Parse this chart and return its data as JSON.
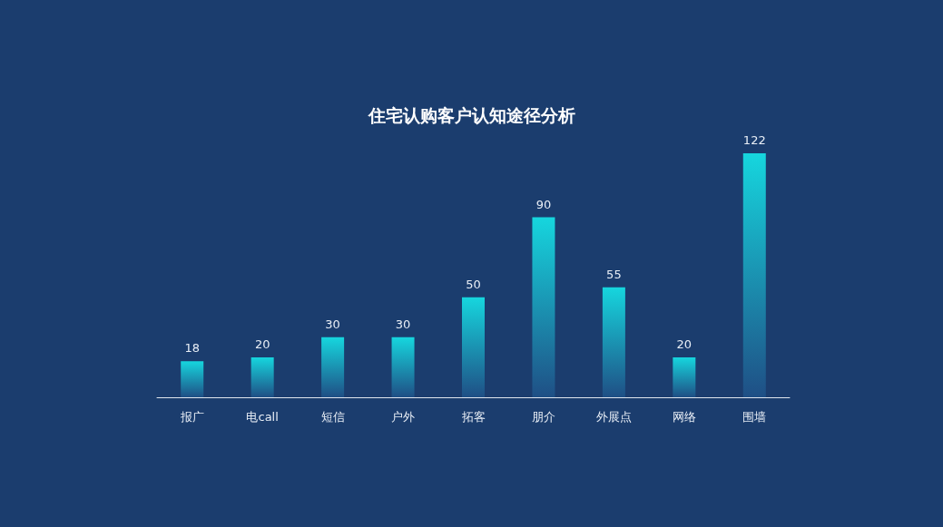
{
  "chart_data": {
    "type": "bar",
    "title": "住宅认购客户认知途径分析",
    "categories": [
      "报广",
      "电call",
      "短信",
      "户外",
      "拓客",
      "朋介",
      "外展点",
      "网络",
      "围墙"
    ],
    "values": [
      18,
      20,
      30,
      30,
      50,
      90,
      55,
      20,
      122
    ],
    "color": "#16d6de",
    "data_labels": true
  }
}
